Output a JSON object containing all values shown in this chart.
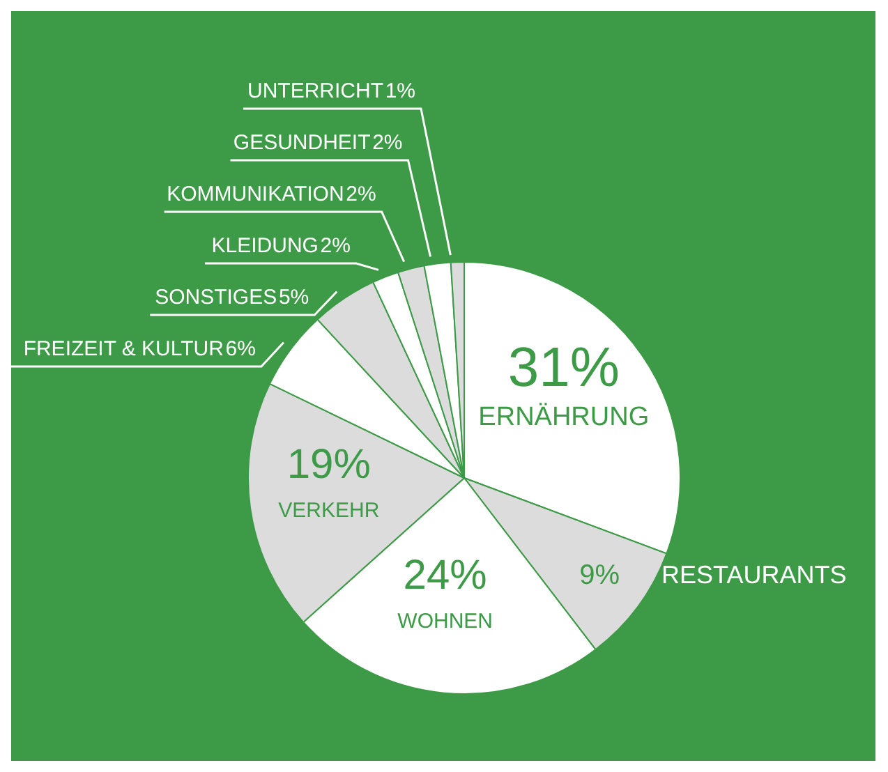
{
  "chart_data": {
    "type": "pie",
    "categories": [
      "ERNÄHRUNG",
      "RESTAURANTS",
      "WOHNEN",
      "VERKEHR",
      "FREIZEIT & KULTUR",
      "SONSTIGES",
      "KLEIDUNG",
      "KOMMUNIKATION",
      "GESUNDHEIT",
      "UNTERRICHT"
    ],
    "values": [
      31,
      9,
      24,
      19,
      6,
      5,
      2,
      2,
      2,
      1
    ],
    "colors": [
      "#ffffff",
      "#dcdcdc",
      "#ffffff",
      "#dcdcdc",
      "#ffffff",
      "#dcdcdc",
      "#ffffff",
      "#dcdcdc",
      "#ffffff",
      "#dcdcdc"
    ],
    "value_labels": [
      "31%",
      "9%",
      "24%",
      "19%",
      "6%",
      "5%",
      "2%",
      "2%",
      "2%",
      "1%"
    ],
    "legend": false
  }
}
